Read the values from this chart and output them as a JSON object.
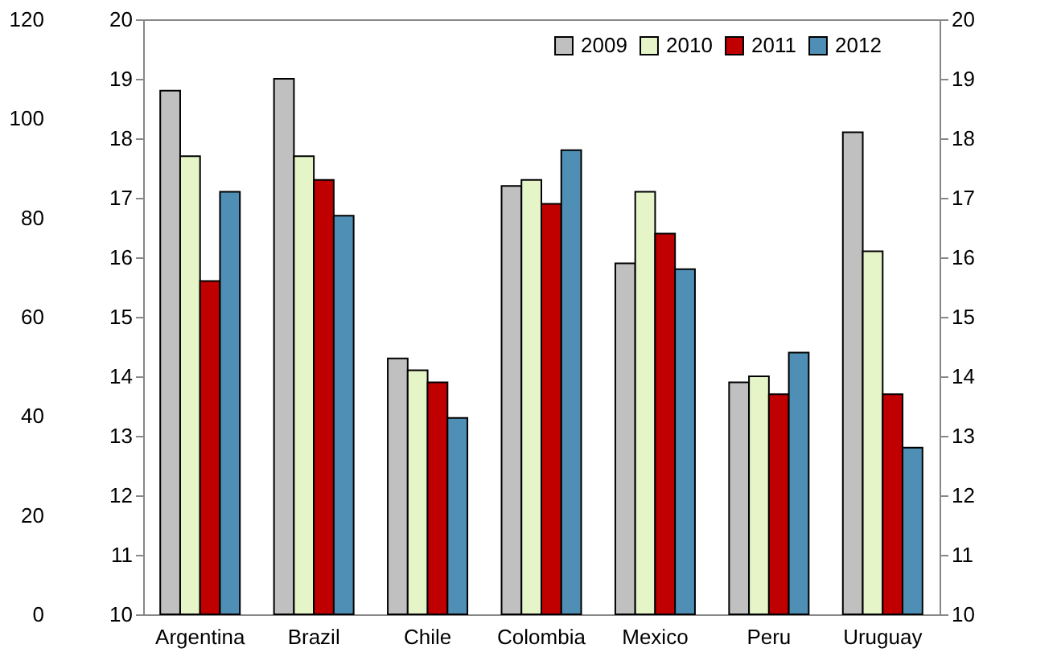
{
  "chart_data": {
    "type": "bar",
    "categories": [
      "Argentina",
      "Brazil",
      "Chile",
      "Colombia",
      "Mexico",
      "Peru",
      "Uruguay"
    ],
    "series": [
      {
        "name": "2009",
        "color": "#c0c0c0",
        "values": [
          18.8,
          19.0,
          14.3,
          17.2,
          15.9,
          13.9,
          18.1
        ]
      },
      {
        "name": "2010",
        "color": "#e6f5c8",
        "values": [
          17.7,
          17.7,
          14.1,
          17.3,
          17.1,
          14.0,
          16.1
        ]
      },
      {
        "name": "2011",
        "color": "#c00000",
        "values": [
          15.6,
          17.3,
          13.9,
          16.9,
          16.4,
          13.7,
          13.7
        ]
      },
      {
        "name": "2012",
        "color": "#4f8fb5",
        "values": [
          17.1,
          16.7,
          13.3,
          17.8,
          15.8,
          14.4,
          12.8
        ]
      }
    ],
    "ylim": [
      10,
      20
    ],
    "yticks": [
      10,
      11,
      12,
      13,
      14,
      15,
      16,
      17,
      18,
      19,
      20
    ],
    "y2lim": [
      10,
      20
    ],
    "y2ticks": [
      10,
      11,
      12,
      13,
      14,
      15,
      16,
      17,
      18,
      19,
      20
    ],
    "y3lim": [
      0,
      120
    ],
    "y3ticks": [
      0,
      20,
      40,
      60,
      80,
      100,
      120
    ],
    "legend": "top right",
    "grid": false
  }
}
